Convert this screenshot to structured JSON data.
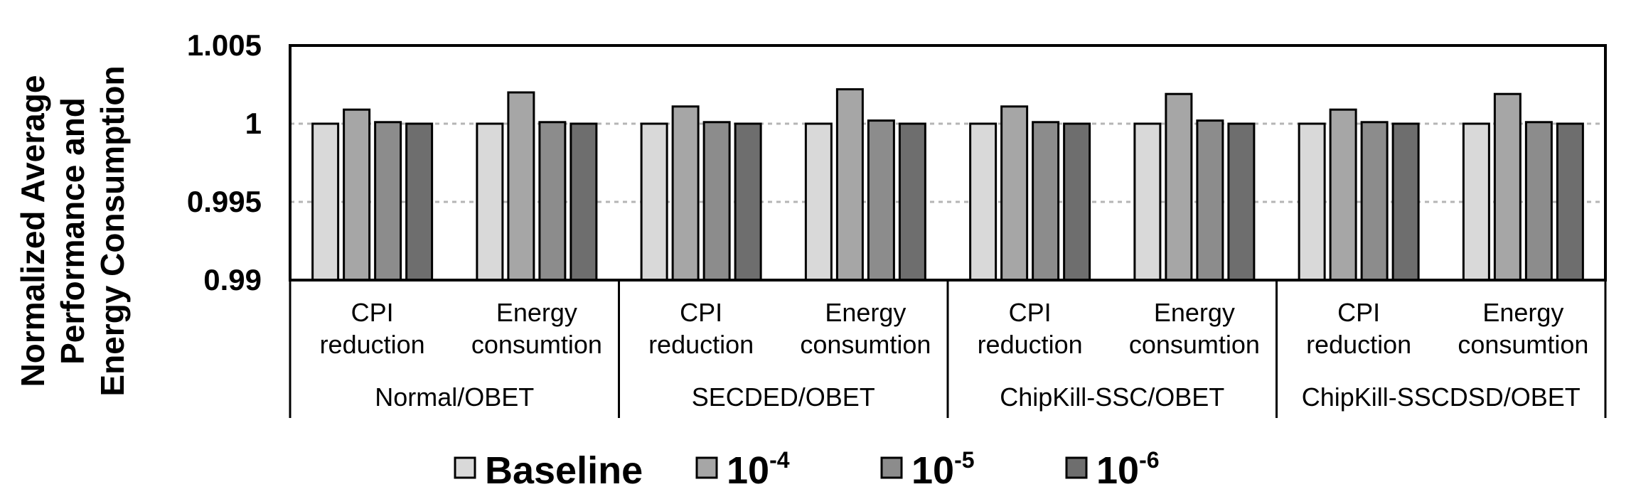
{
  "chart_data": {
    "type": "bar",
    "ylabel_lines": [
      "Normalized Average",
      "Performance and",
      "Energy Consumption"
    ],
    "ylim": [
      0.99,
      1.005
    ],
    "yticks": [
      "0.99",
      "0.995",
      "1",
      "1.005"
    ],
    "gridlines_at": [
      0.995,
      1.0
    ],
    "groups": [
      {
        "name": "Normal/OBET",
        "categories": [
          {
            "label_line1": "CPI",
            "label_line2": "reduction",
            "values": [
              1.0,
              1.0009,
              1.0001,
              1.0
            ]
          },
          {
            "label_line1": "Energy",
            "label_line2": "consumtion",
            "values": [
              1.0,
              1.002,
              1.0001,
              1.0
            ]
          }
        ]
      },
      {
        "name": "SECDED/OBET",
        "categories": [
          {
            "label_line1": "CPI",
            "label_line2": "reduction",
            "values": [
              1.0,
              1.0011,
              1.0001,
              1.0
            ]
          },
          {
            "label_line1": "Energy",
            "label_line2": "consumtion",
            "values": [
              1.0,
              1.0022,
              1.0002,
              1.0
            ]
          }
        ]
      },
      {
        "name": "ChipKill-SSC/OBET",
        "categories": [
          {
            "label_line1": "CPI",
            "label_line2": "reduction",
            "values": [
              1.0,
              1.0011,
              1.0001,
              1.0
            ]
          },
          {
            "label_line1": "Energy",
            "label_line2": "consumtion",
            "values": [
              1.0,
              1.0019,
              1.0002,
              1.0
            ]
          }
        ]
      },
      {
        "name": "ChipKill-SSCDSD/OBET",
        "categories": [
          {
            "label_line1": "CPI",
            "label_line2": "reduction",
            "values": [
              1.0,
              1.0009,
              1.0001,
              1.0
            ]
          },
          {
            "label_line1": "Energy",
            "label_line2": "consumtion",
            "values": [
              1.0,
              1.0019,
              1.0001,
              1.0
            ]
          }
        ]
      }
    ],
    "series": [
      {
        "name": "Baseline",
        "color": "#d9d9d9"
      },
      {
        "name": "10",
        "exponent": "-4",
        "color": "#a6a6a6"
      },
      {
        "name": "10",
        "exponent": "-5",
        "color": "#8c8c8c"
      },
      {
        "name": "10",
        "exponent": "-6",
        "color": "#6e6e6e"
      }
    ]
  }
}
